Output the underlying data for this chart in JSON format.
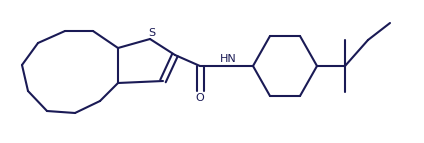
{
  "background_color": "#ffffff",
  "line_color": "#1a1a55",
  "line_width": 1.5,
  "text_color": "#1a1a55",
  "S_label": "S",
  "HN_label": "HN",
  "O_label": "O",
  "figsize": [
    4.24,
    1.43
  ],
  "dpi": 100,
  "xlim": [
    0,
    424
  ],
  "ylim": [
    0,
    143
  ]
}
